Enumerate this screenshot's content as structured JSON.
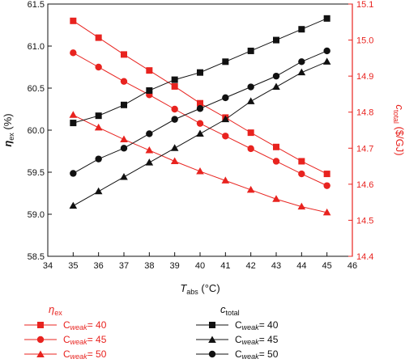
{
  "chart_data": {
    "type": "line",
    "xlabel": {
      "main": "T",
      "sub": "abs",
      "unit": " (°C)"
    },
    "ylabel_left": {
      "main": "η",
      "sub": "ex",
      "unit": " (%)"
    },
    "ylabel_right": {
      "main": "c",
      "sub": "total",
      "unit": " ($/GJ)"
    },
    "xlim": [
      34,
      46
    ],
    "ylim_left": [
      58.5,
      61.5
    ],
    "ylim_right": [
      14.4,
      15.1
    ],
    "x_ticks": [
      "34",
      "35",
      "36",
      "37",
      "38",
      "39",
      "40",
      "41",
      "42",
      "43",
      "44",
      "45",
      "46"
    ],
    "y_ticks_left": [
      "58.5",
      "59.0",
      "59.5",
      "60.0",
      "60.5",
      "61.0",
      "61.5"
    ],
    "y_ticks_right": [
      "14.4",
      "14.5",
      "14.6",
      "14.7",
      "14.8",
      "14.9",
      "15.0",
      "15.1"
    ],
    "x": [
      35,
      36,
      37,
      38,
      39,
      40,
      41,
      42,
      43,
      44,
      45
    ],
    "colors": {
      "red": "#e8231f",
      "black": "#111111"
    },
    "groups": [
      {
        "title_main": "η",
        "title_sub": "ex",
        "axis": "left",
        "color": "#e8231f",
        "series": [
          {
            "name": "C",
            "name_sub": "weak",
            "name_rest": " = 40",
            "marker": "square",
            "values": [
              61.3,
              61.1,
              60.9,
              60.71,
              60.52,
              60.32,
              60.15,
              59.97,
              59.8,
              59.63,
              59.48
            ]
          },
          {
            "name": "C",
            "name_sub": "weak",
            "name_rest": " = 45",
            "marker": "circle",
            "values": [
              60.92,
              60.75,
              60.58,
              60.42,
              60.25,
              60.08,
              59.93,
              59.78,
              59.63,
              59.48,
              59.34
            ]
          },
          {
            "name": "C",
            "name_sub": "weak",
            "name_rest": " = 50",
            "marker": "triangle",
            "values": [
              60.18,
              60.03,
              59.89,
              59.76,
              59.63,
              59.51,
              59.4,
              59.29,
              59.18,
              59.09,
              59.02
            ]
          }
        ]
      },
      {
        "title_main": "c",
        "title_sub": "total",
        "axis": "right",
        "color": "#111111",
        "series": [
          {
            "name": "C",
            "name_sub": "weak",
            "name_rest": " = 40",
            "marker": "square",
            "values": [
              14.77,
              14.79,
              14.82,
              14.86,
              14.89,
              14.91,
              14.94,
              14.97,
              15.0,
              15.03,
              15.06
            ]
          },
          {
            "name": "C",
            "name_sub": "weak",
            "name_rest": " = 45",
            "marker": "triangle",
            "values": [
              14.54,
              14.58,
              14.62,
              14.66,
              14.7,
              14.74,
              14.78,
              14.83,
              14.87,
              14.91,
              14.94
            ]
          },
          {
            "name": "C",
            "name_sub": "weak",
            "name_rest": " = 50",
            "marker": "circle",
            "values": [
              14.63,
              14.67,
              14.7,
              14.74,
              14.78,
              14.81,
              14.84,
              14.87,
              14.9,
              14.94,
              14.97
            ]
          }
        ]
      }
    ]
  }
}
